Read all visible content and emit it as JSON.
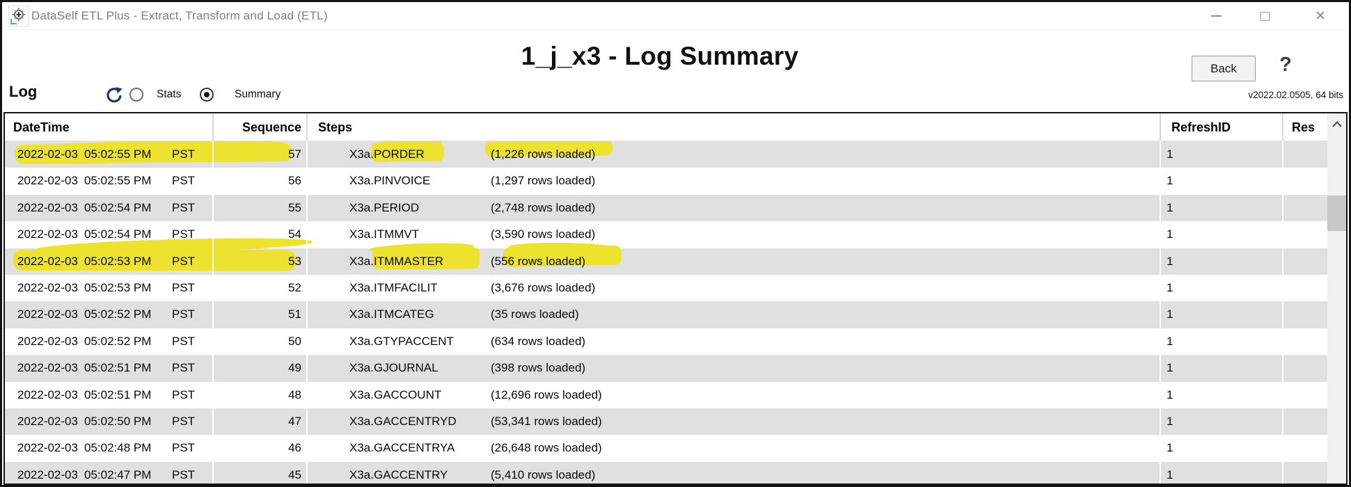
{
  "titlebar": {
    "app_title": "DataSelf ETL Plus - Extract, Transform and Load (ETL)",
    "window_controls": {
      "minimize": "minimize-icon",
      "maximize": "maximize-icon",
      "close": "close-icon"
    },
    "close_glyph": "✕"
  },
  "header": {
    "page_title": "1_j_x3 - Log Summary",
    "back_label": "Back",
    "help_glyph": "?",
    "version": "v2022.02.0505, 64 bits"
  },
  "toolbar": {
    "log_label": "Log",
    "refresh_icon": "refresh-arrow-icon",
    "radios": {
      "stats": {
        "label": "Stats",
        "selected": false
      },
      "summary": {
        "label": "Summary",
        "selected": true
      }
    }
  },
  "table": {
    "columns": [
      {
        "id": "datetime",
        "label": "DateTime"
      },
      {
        "id": "sequence",
        "label": "Sequence"
      },
      {
        "id": "steps",
        "label": "Steps"
      },
      {
        "id": "refresh_id",
        "label": "RefreshID"
      },
      {
        "id": "res",
        "label": "Res"
      }
    ],
    "rows": [
      {
        "date": "2022-02-03",
        "time": "05:02:55 PM",
        "tz": "PST",
        "sequence": "57",
        "step": "X3a.PORDER",
        "loaded": "(1,226 rows loaded)",
        "refresh_id": "1",
        "highlights": [
          "datetime",
          "step",
          "loaded"
        ]
      },
      {
        "date": "2022-02-03",
        "time": "05:02:55 PM",
        "tz": "PST",
        "sequence": "56",
        "step": "X3a.PINVOICE",
        "loaded": "(1,297 rows loaded)",
        "refresh_id": "1",
        "highlights": []
      },
      {
        "date": "2022-02-03",
        "time": "05:02:54 PM",
        "tz": "PST",
        "sequence": "55",
        "step": "X3a.PERIOD",
        "loaded": "(2,748 rows loaded)",
        "refresh_id": "1",
        "highlights": []
      },
      {
        "date": "2022-02-03",
        "time": "05:02:54 PM",
        "tz": "PST",
        "sequence": "54",
        "step": "X3a.ITMMVT",
        "loaded": "(3,590 rows loaded)",
        "refresh_id": "1",
        "highlights": []
      },
      {
        "date": "2022-02-03",
        "time": "05:02:53 PM",
        "tz": "PST",
        "sequence": "53",
        "step": "X3a.ITMMASTER",
        "loaded": "(556 rows loaded)",
        "refresh_id": "1",
        "highlights": [
          "datetime",
          "step",
          "loaded"
        ]
      },
      {
        "date": "2022-02-03",
        "time": "05:02:53 PM",
        "tz": "PST",
        "sequence": "52",
        "step": "X3a.ITMFACILIT",
        "loaded": "(3,676 rows loaded)",
        "refresh_id": "1",
        "highlights": []
      },
      {
        "date": "2022-02-03",
        "time": "05:02:52 PM",
        "tz": "PST",
        "sequence": "51",
        "step": "X3a.ITMCATEG",
        "loaded": "(35 rows loaded)",
        "refresh_id": "1",
        "highlights": []
      },
      {
        "date": "2022-02-03",
        "time": "05:02:52 PM",
        "tz": "PST",
        "sequence": "50",
        "step": "X3a.GTYPACCENT",
        "loaded": "(634 rows loaded)",
        "refresh_id": "1",
        "highlights": []
      },
      {
        "date": "2022-02-03",
        "time": "05:02:51 PM",
        "tz": "PST",
        "sequence": "49",
        "step": "X3a.GJOURNAL",
        "loaded": "(398 rows loaded)",
        "refresh_id": "1",
        "highlights": []
      },
      {
        "date": "2022-02-03",
        "time": "05:02:51 PM",
        "tz": "PST",
        "sequence": "48",
        "step": "X3a.GACCOUNT",
        "loaded": "(12,696 rows loaded)",
        "refresh_id": "1",
        "highlights": []
      },
      {
        "date": "2022-02-03",
        "time": "05:02:50 PM",
        "tz": "PST",
        "sequence": "47",
        "step": "X3a.GACCENTRYD",
        "loaded": "(53,341 rows loaded)",
        "refresh_id": "1",
        "highlights": []
      },
      {
        "date": "2022-02-03",
        "time": "05:02:48 PM",
        "tz": "PST",
        "sequence": "46",
        "step": "X3a.GACCENTRYA",
        "loaded": "(26,648 rows loaded)",
        "refresh_id": "1",
        "highlights": []
      },
      {
        "date": "2022-02-03",
        "time": "05:02:47 PM",
        "tz": "PST",
        "sequence": "45",
        "step": "X3a.GACCENTRY",
        "loaded": "(5,410 rows loaded)",
        "refresh_id": "1",
        "highlights": []
      }
    ]
  },
  "scrollbar": {
    "up_icon": "chevron-up-icon"
  },
  "colors": {
    "highlight_marker": "#ede32f",
    "row_alt": "#e0e0e0",
    "refresh_icon": "#223a62",
    "titlebar_text": "#7e7e7e",
    "title_text": "#111111"
  }
}
